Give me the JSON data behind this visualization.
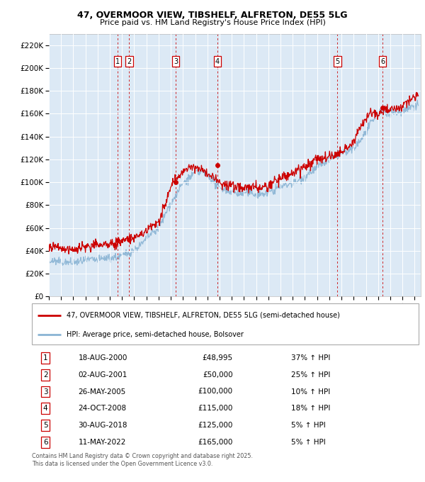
{
  "title_line1": "47, OVERMOOR VIEW, TIBSHELF, ALFRETON, DE55 5LG",
  "title_line2": "Price paid vs. HM Land Registry's House Price Index (HPI)",
  "ylim": [
    0,
    230000
  ],
  "yticks": [
    0,
    20000,
    40000,
    60000,
    80000,
    100000,
    120000,
    140000,
    160000,
    180000,
    200000,
    220000
  ],
  "ytick_labels": [
    "£0",
    "£20K",
    "£40K",
    "£60K",
    "£80K",
    "£100K",
    "£120K",
    "£140K",
    "£160K",
    "£180K",
    "£200K",
    "£220K"
  ],
  "xlim_start": 1995.0,
  "xlim_end": 2025.5,
  "plot_bg_color": "#dce9f5",
  "grid_color": "#ffffff",
  "red_color": "#cc0000",
  "blue_color": "#8ab4d4",
  "sale_points": [
    {
      "num": 1,
      "year": 2000.63,
      "price": 48995,
      "label": "1"
    },
    {
      "num": 2,
      "year": 2001.58,
      "price": 50000,
      "label": "2"
    },
    {
      "num": 3,
      "year": 2005.4,
      "price": 100000,
      "label": "3"
    },
    {
      "num": 4,
      "year": 2008.82,
      "price": 115000,
      "label": "4"
    },
    {
      "num": 5,
      "year": 2018.66,
      "price": 125000,
      "label": "5"
    },
    {
      "num": 6,
      "year": 2022.36,
      "price": 165000,
      "label": "6"
    }
  ],
  "vline_color": "#cc0000",
  "table_rows": [
    {
      "num": "1",
      "date": "18-AUG-2000",
      "price": "£48,995",
      "hpi": "37% ↑ HPI"
    },
    {
      "num": "2",
      "date": "02-AUG-2001",
      "price": "£50,000",
      "hpi": "25% ↑ HPI"
    },
    {
      "num": "3",
      "date": "26-MAY-2005",
      "price": "£100,000",
      "hpi": "10% ↑ HPI"
    },
    {
      "num": "4",
      "date": "24-OCT-2008",
      "price": "£115,000",
      "hpi": "18% ↑ HPI"
    },
    {
      "num": "5",
      "date": "30-AUG-2018",
      "price": "£125,000",
      "hpi": "5% ↑ HPI"
    },
    {
      "num": "6",
      "date": "11-MAY-2022",
      "price": "£165,000",
      "hpi": "5% ↑ HPI"
    }
  ],
  "legend_line1": "47, OVERMOOR VIEW, TIBSHELF, ALFRETON, DE55 5LG (semi-detached house)",
  "legend_line2": "HPI: Average price, semi-detached house, Bolsover",
  "footnote": "Contains HM Land Registry data © Crown copyright and database right 2025.\nThis data is licensed under the Open Government Licence v3.0."
}
